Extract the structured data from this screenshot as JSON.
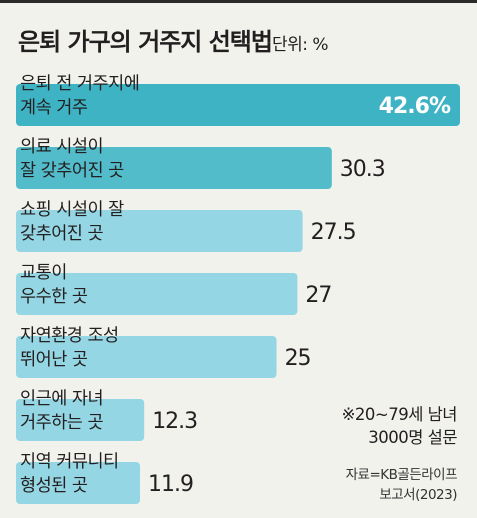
{
  "header": {
    "title": "은퇴 가구의 거주지 선택법",
    "unit": "단위: %"
  },
  "notes": {
    "sample_line1": "※20~79세 남녀",
    "sample_line2": "3000명 설문",
    "source_line1": "자료=KB골든라이프",
    "source_line2": "보고서(2023)"
  },
  "colors": {
    "background": "#f2f2ec",
    "bar_top": "#3eb3c4",
    "bar_second": "#52bccb",
    "bar_rest": "#94d6e3",
    "text": "#231f20"
  },
  "chart_data": {
    "type": "bar",
    "orientation": "horizontal",
    "title": "은퇴 가구의 거주지 선택법",
    "unit": "%",
    "categories": [
      [
        "은퇴 전 거주지에",
        "계속 거주"
      ],
      [
        "의료 시설이",
        "잘 갖추어진 곳"
      ],
      [
        "쇼핑 시설이 잘",
        "갖추어진 곳"
      ],
      [
        "교통이",
        "우수한 곳"
      ],
      [
        "자연환경 조성",
        "뛰어난 곳"
      ],
      [
        "인근에 자녀",
        "거주하는 곳"
      ],
      [
        "지역 커뮤니티",
        "형성된 곳"
      ]
    ],
    "values": [
      42.6,
      30.3,
      27.5,
      27,
      25,
      12.3,
      11.9
    ],
    "value_labels": [
      "42.6%",
      "30.3",
      "27.5",
      "27",
      "25",
      "12.3",
      "11.9"
    ],
    "xlim": [
      0,
      42.6
    ],
    "grid": false,
    "legend": "none"
  }
}
